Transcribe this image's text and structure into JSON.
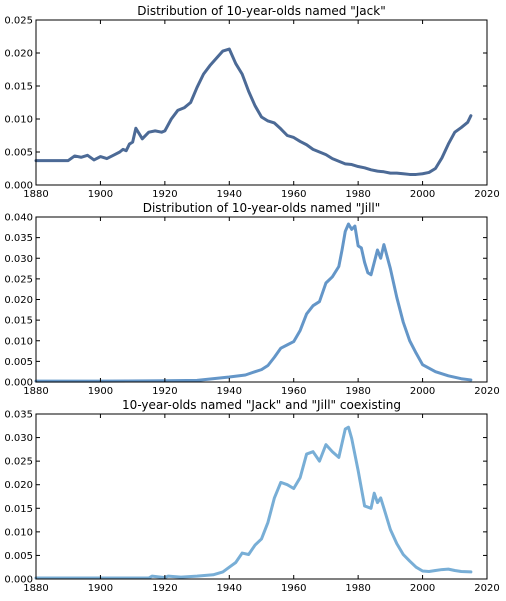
{
  "chart_data": [
    {
      "type": "line",
      "title": "Distribution of 10-year-olds named \"Jack\"",
      "xlabel": "",
      "ylabel": "",
      "xlim": [
        1880,
        2020
      ],
      "ylim": [
        0,
        0.025
      ],
      "grid": false,
      "color": "#4c6a96",
      "xticks": [
        "1880",
        "1900",
        "1920",
        "1940",
        "1960",
        "1980",
        "2000",
        "2020"
      ],
      "yticks": [
        "0.000",
        "0.005",
        "0.010",
        "0.015",
        "0.020",
        "0.025"
      ],
      "series": [
        {
          "x": [
            1880,
            1885,
            1890,
            1892,
            1894,
            1896,
            1898,
            1900,
            1902,
            1904,
            1906,
            1907,
            1908,
            1909,
            1910,
            1911,
            1913,
            1915,
            1917,
            1919,
            1920,
            1922,
            1924,
            1926,
            1928,
            1930,
            1932,
            1934,
            1936,
            1938,
            1940,
            1942,
            1944,
            1946,
            1948,
            1950,
            1952,
            1954,
            1956,
            1958,
            1960,
            1962,
            1964,
            1966,
            1968,
            1970,
            1972,
            1974,
            1976,
            1978,
            1980,
            1982,
            1984,
            1986,
            1988,
            1990,
            1992,
            1994,
            1996,
            1998,
            2000,
            2002,
            2004,
            2006,
            2008,
            2010,
            2012,
            2014,
            2015
          ],
          "y": [
            0.0037,
            0.0037,
            0.0037,
            0.0044,
            0.0042,
            0.0045,
            0.0038,
            0.0043,
            0.004,
            0.0045,
            0.005,
            0.0054,
            0.0052,
            0.0062,
            0.0065,
            0.0086,
            0.007,
            0.008,
            0.0082,
            0.008,
            0.0082,
            0.01,
            0.0113,
            0.0117,
            0.0125,
            0.0148,
            0.0168,
            0.0181,
            0.0192,
            0.0203,
            0.0206,
            0.0184,
            0.0168,
            0.0142,
            0.012,
            0.0103,
            0.0097,
            0.0094,
            0.0085,
            0.0075,
            0.0072,
            0.0066,
            0.0061,
            0.0054,
            0.005,
            0.0046,
            0.004,
            0.0036,
            0.0032,
            0.0031,
            0.0028,
            0.0026,
            0.0023,
            0.0021,
            0.002,
            0.0018,
            0.0018,
            0.0017,
            0.0016,
            0.0016,
            0.0017,
            0.0019,
            0.0025,
            0.0041,
            0.0062,
            0.008,
            0.0087,
            0.0095,
            0.0105
          ]
        }
      ]
    },
    {
      "type": "line",
      "title": "Distribution of 10-year-olds named \"Jill\"",
      "xlabel": "",
      "ylabel": "",
      "xlim": [
        1880,
        2020
      ],
      "ylim": [
        0,
        0.04
      ],
      "grid": false,
      "color": "#6496c8",
      "xticks": [
        "1880",
        "1900",
        "1920",
        "1940",
        "1960",
        "1980",
        "2000",
        "2020"
      ],
      "yticks": [
        "0.000",
        "0.005",
        "0.010",
        "0.015",
        "0.020",
        "0.025",
        "0.030",
        "0.035",
        "0.040"
      ],
      "series": [
        {
          "x": [
            1880,
            1900,
            1920,
            1930,
            1940,
            1945,
            1948,
            1950,
            1952,
            1954,
            1956,
            1958,
            1960,
            1962,
            1964,
            1966,
            1968,
            1970,
            1972,
            1974,
            1975,
            1976,
            1977,
            1978,
            1979,
            1980,
            1981,
            1982,
            1983,
            1984,
            1985,
            1986,
            1987,
            1988,
            1990,
            1992,
            1994,
            1996,
            1998,
            2000,
            2004,
            2008,
            2012,
            2015
          ],
          "y": [
            0.0002,
            0.0002,
            0.0003,
            0.0004,
            0.0012,
            0.0017,
            0.0025,
            0.003,
            0.004,
            0.006,
            0.0082,
            0.009,
            0.0098,
            0.0125,
            0.0165,
            0.0185,
            0.0195,
            0.024,
            0.0255,
            0.028,
            0.032,
            0.0365,
            0.0383,
            0.037,
            0.0378,
            0.033,
            0.0325,
            0.029,
            0.0265,
            0.026,
            0.029,
            0.032,
            0.03,
            0.0333,
            0.0275,
            0.0205,
            0.0145,
            0.01,
            0.007,
            0.0042,
            0.0025,
            0.0015,
            0.0008,
            0.0005
          ]
        }
      ]
    },
    {
      "type": "line",
      "title": "10-year-olds named \"Jack\" and \"Jill\" coexisting",
      "xlabel": "",
      "ylabel": "",
      "xlim": [
        1880,
        2020
      ],
      "ylim": [
        0,
        0.035
      ],
      "grid": false,
      "color": "#78aed6",
      "xticks": [
        "1880",
        "1900",
        "1920",
        "1940",
        "1960",
        "1980",
        "2000",
        "2020"
      ],
      "yticks": [
        "0.000",
        "0.005",
        "0.010",
        "0.015",
        "0.020",
        "0.025",
        "0.030",
        "0.035"
      ],
      "series": [
        {
          "x": [
            1880,
            1900,
            1915,
            1916,
            1920,
            1921,
            1925,
            1930,
            1935,
            1938,
            1940,
            1942,
            1944,
            1946,
            1948,
            1950,
            1952,
            1954,
            1956,
            1958,
            1960,
            1962,
            1964,
            1966,
            1968,
            1970,
            1972,
            1974,
            1976,
            1977,
            1978,
            1980,
            1982,
            1984,
            1985,
            1986,
            1987,
            1988,
            1990,
            1992,
            1994,
            1996,
            1998,
            2000,
            2002,
            2004,
            2006,
            2008,
            2010,
            2012,
            2015
          ],
          "y": [
            0.0002,
            0.0002,
            0.0002,
            0.0006,
            0.0003,
            0.0006,
            0.0004,
            0.0006,
            0.0009,
            0.0015,
            0.0025,
            0.0035,
            0.0055,
            0.0052,
            0.0072,
            0.0085,
            0.012,
            0.0172,
            0.0205,
            0.02,
            0.0192,
            0.0215,
            0.0265,
            0.027,
            0.025,
            0.0285,
            0.027,
            0.0258,
            0.0318,
            0.0322,
            0.0298,
            0.023,
            0.0155,
            0.015,
            0.0182,
            0.0162,
            0.0172,
            0.015,
            0.0105,
            0.0075,
            0.0052,
            0.0038,
            0.0025,
            0.0017,
            0.0016,
            0.0018,
            0.002,
            0.0021,
            0.0018,
            0.0016,
            0.0015
          ]
        }
      ]
    }
  ]
}
